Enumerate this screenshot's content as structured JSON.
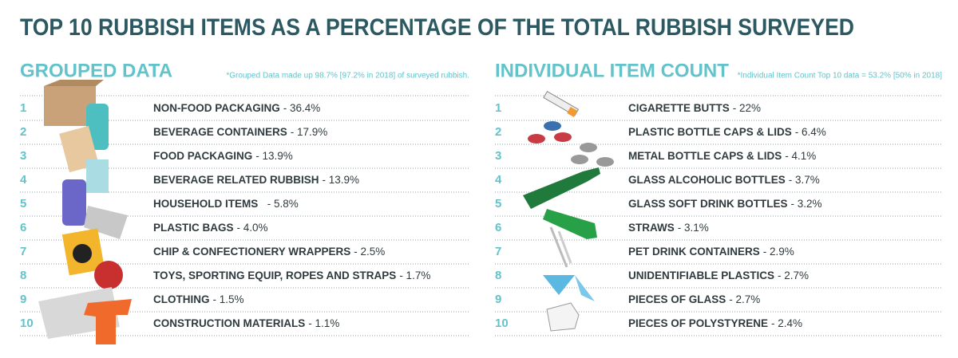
{
  "header": {
    "title": "TOP 10 RUBBISH ITEMS AS A PERCENTAGE OF THE TOTAL RUBBISH SURVEYED"
  },
  "sections": [
    {
      "title": "GROUPED DATA",
      "note": "*Grouped Data made up 98.7% [97.2% in 2018] of surveyed rubbish.",
      "items": [
        {
          "rank": "1",
          "name": "NON-FOOD PACKAGING",
          "value": "- 36.4%"
        },
        {
          "rank": "2",
          "name": "BEVERAGE CONTAINERS",
          "value": "- 17.9%"
        },
        {
          "rank": "3",
          "name": "FOOD PACKAGING",
          "value": "- 13.9%"
        },
        {
          "rank": "4",
          "name": "BEVERAGE RELATED RUBBISH",
          "value": "- 13.9%"
        },
        {
          "rank": "5",
          "name": "HOUSEHOLD ITEMS ",
          "value": " - 5.8%"
        },
        {
          "rank": "6",
          "name": "PLASTIC BAGS",
          "value": "- 4.0%"
        },
        {
          "rank": "7",
          "name": "CHIP & CONFECTIONERY WRAPPERS",
          "value": "- 2.5%"
        },
        {
          "rank": "8",
          "name": "TOYS, SPORTING EQUIP, ROPES AND STRAPS",
          "value": "- 1.7%"
        },
        {
          "rank": "9",
          "name": "CLOTHING",
          "value": "- 1.5%"
        },
        {
          "rank": "10",
          "name": "CONSTRUCTION MATERIALS",
          "value": "- 1.1%"
        }
      ]
    },
    {
      "title": "INDIVIDUAL ITEM COUNT",
      "note": "*Individual Item Count Top 10 data = 53.2% [50% in 2018]",
      "items": [
        {
          "rank": "1",
          "name": "CIGARETTE BUTTS",
          "value": "- 22%"
        },
        {
          "rank": "2",
          "name": "PLASTIC BOTTLE CAPS & LIDS",
          "value": "- 6.4%"
        },
        {
          "rank": "3",
          "name": "METAL BOTTLE CAPS & LIDS",
          "value": "- 4.1%"
        },
        {
          "rank": "4",
          "name": "GLASS ALCOHOLIC BOTTLES",
          "value": "- 3.7%"
        },
        {
          "rank": "5",
          "name": "GLASS SOFT DRINK BOTTLES",
          "value": "- 3.2%"
        },
        {
          "rank": "6",
          "name": "STRAWS",
          "value": "- 3.1%"
        },
        {
          "rank": "7",
          "name": "PET DRINK CONTAINERS",
          "value": "- 2.9%"
        },
        {
          "rank": "8",
          "name": "UNIDENTIFIABLE PLASTICS",
          "value": "- 2.7%"
        },
        {
          "rank": "9",
          "name": "PIECES OF GLASS",
          "value": "- 2.7%"
        },
        {
          "rank": "10",
          "name": "PIECES OF POLYSTYRENE",
          "value": "- 2.4%"
        }
      ]
    }
  ]
}
